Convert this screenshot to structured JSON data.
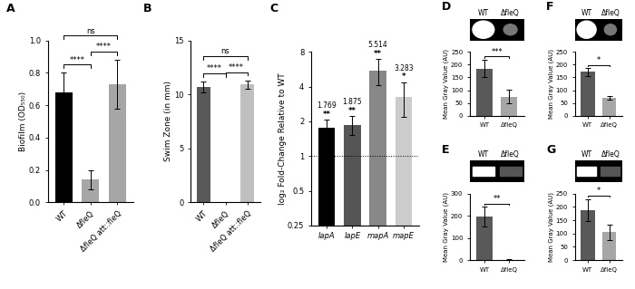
{
  "chart_data": [
    {
      "panel": "A",
      "type": "bar",
      "y_label": "Biofilm (OD₅₅₀)",
      "categories": [
        "WT",
        "ΔfleQ",
        "ΔfleQ att::fleQ"
      ],
      "values": [
        0.68,
        0.14,
        0.73
      ],
      "errors": [
        0.12,
        0.06,
        0.15
      ],
      "colors": [
        "#000000",
        "#a6a6a6",
        "#a6a6a6"
      ],
      "ylim": [
        0.0,
        1.0
      ],
      "yticks": [
        0.0,
        0.2,
        0.4,
        0.6,
        0.8,
        1.0
      ],
      "comparisons": [
        {
          "pair": [
            "WT",
            "ΔfleQ"
          ],
          "label": "****"
        },
        {
          "pair": [
            "ΔfleQ",
            "ΔfleQ att::fleQ"
          ],
          "label": "****"
        },
        {
          "pair": [
            "WT",
            "ΔfleQ att::fleQ"
          ],
          "label": "ns"
        }
      ]
    },
    {
      "panel": "B",
      "type": "bar",
      "y_label": "Swim Zone (in mm)",
      "categories": [
        "WT",
        "ΔfleQ",
        "ΔfleQ att::fleQ"
      ],
      "values": [
        10.7,
        0,
        10.9
      ],
      "errors": [
        0.5,
        0,
        0.4
      ],
      "colors": [
        "#595959",
        "#a6a6a6",
        "#bfbfbf"
      ],
      "ylim": [
        0,
        15
      ],
      "yticks": [
        0,
        5,
        10,
        15
      ],
      "comparisons": [
        {
          "pair": [
            "WT",
            "ΔfleQ"
          ],
          "label": "****"
        },
        {
          "pair": [
            "ΔfleQ",
            "ΔfleQ att::fleQ"
          ],
          "label": "****"
        },
        {
          "pair": [
            "WT",
            "ΔfleQ att::fleQ"
          ],
          "label": "ns"
        }
      ]
    },
    {
      "panel": "C",
      "type": "bar",
      "log": "y",
      "y_label": "log₂ Fold-Change Relative to WT",
      "categories": [
        "lapA",
        "lapE",
        "mapA",
        "mapE"
      ],
      "values": [
        1.769,
        1.875,
        5.514,
        3.283
      ],
      "errors": [
        0.3,
        0.35,
        1.4,
        1.1
      ],
      "colors": [
        "#000000",
        "#555555",
        "#888888",
        "#cccccc"
      ],
      "data_labels": true,
      "significance": [
        "**",
        "**",
        "**",
        "*"
      ],
      "baseline": 1,
      "ylim": [
        0.25,
        8
      ],
      "yticks": [
        0.25,
        0.5,
        1,
        2,
        4,
        8
      ]
    },
    {
      "panel": "D",
      "type": "bar",
      "image_labels": [
        "WT",
        "ΔfleQ"
      ],
      "y_label": "Mean Gray Value (AU)",
      "categories": [
        "WT",
        "ΔfleQ"
      ],
      "values": [
        185,
        75
      ],
      "errors": [
        35,
        28
      ],
      "colors": [
        "#595959",
        "#a6a6a6"
      ],
      "ylim": [
        0,
        250
      ],
      "yticks": [
        0,
        50,
        100,
        150,
        200,
        250
      ],
      "comparisons": [
        {
          "pair": [
            "WT",
            "ΔfleQ"
          ],
          "label": "***"
        }
      ]
    },
    {
      "panel": "E",
      "type": "bar",
      "image_labels": [
        "WT",
        "ΔfleQ"
      ],
      "y_label": "Mean Gray Value (AU)",
      "categories": [
        "WT",
        "ΔfleQ"
      ],
      "values": [
        195,
        2
      ],
      "errors": [
        45,
        1
      ],
      "colors": [
        "#595959",
        "#a6a6a6"
      ],
      "ylim": [
        0,
        300
      ],
      "yticks": [
        0,
        100,
        200,
        300
      ],
      "comparisons": [
        {
          "pair": [
            "WT",
            "ΔfleQ"
          ],
          "label": "**"
        }
      ]
    },
    {
      "panel": "F",
      "type": "bar",
      "image_labels": [
        "WT",
        "ΔfleQ"
      ],
      "y_label": "Mean Gray Value (AU)",
      "categories": [
        "WT",
        "ΔfleQ"
      ],
      "values": [
        172,
        70
      ],
      "errors": [
        15,
        7
      ],
      "colors": [
        "#595959",
        "#a6a6a6"
      ],
      "ylim": [
        0,
        250
      ],
      "yticks": [
        0,
        50,
        100,
        150,
        200,
        250
      ],
      "comparisons": [
        {
          "pair": [
            "WT",
            "ΔfleQ"
          ],
          "label": "*"
        }
      ]
    },
    {
      "panel": "G",
      "type": "bar",
      "image_labels": [
        "WT",
        "ΔfleQ"
      ],
      "y_label": "Mean Gray Value (AU)",
      "categories": [
        "WT",
        "ΔfleQ"
      ],
      "values": [
        188,
        105
      ],
      "errors": [
        42,
        28
      ],
      "colors": [
        "#595959",
        "#a6a6a6"
      ],
      "ylim": [
        0,
        250
      ],
      "yticks": [
        0,
        50,
        100,
        150,
        200,
        250
      ],
      "comparisons": [
        {
          "pair": [
            "WT",
            "ΔfleQ"
          ],
          "label": "*"
        }
      ]
    }
  ]
}
